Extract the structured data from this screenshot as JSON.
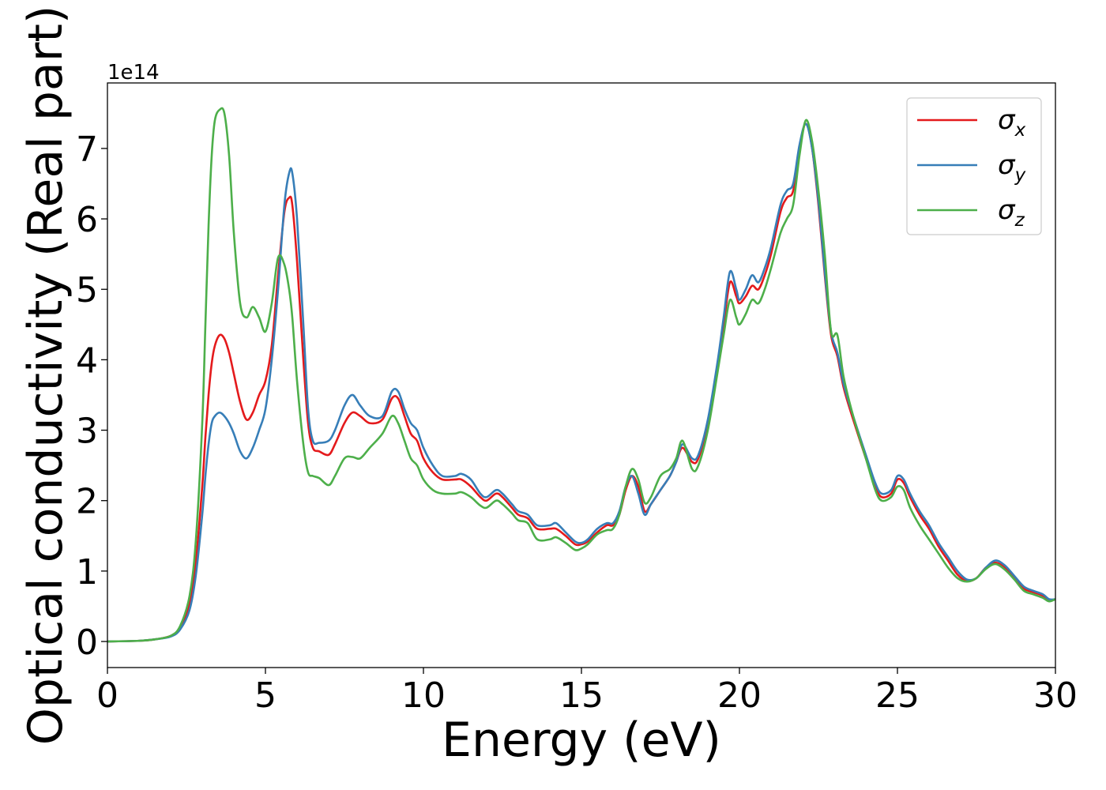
{
  "chart_data": {
    "type": "line",
    "xlabel": "Energy (eV)",
    "ylabel": "Optical conductivity (Real part)",
    "y_offset_text": "1e14",
    "xlim": [
      0,
      30
    ],
    "ylim": [
      -0.37,
      7.93
    ],
    "x_ticks": [
      0,
      5,
      10,
      15,
      20,
      25,
      30
    ],
    "y_ticks": [
      0,
      1,
      2,
      3,
      4,
      5,
      6,
      7
    ],
    "grid": false,
    "legend_position": "top-right",
    "series": [
      {
        "name": "σx",
        "symbol": "σ",
        "subscript": "x",
        "color": "#e41a1c",
        "x": [
          0,
          1,
          1.5,
          2,
          2.3,
          2.6,
          2.8,
          3.0,
          3.1,
          3.2,
          3.3,
          3.4,
          3.55,
          3.7,
          3.85,
          4.0,
          4.2,
          4.4,
          4.6,
          4.8,
          5.0,
          5.2,
          5.4,
          5.6,
          5.75,
          5.85,
          6.0,
          6.2,
          6.35,
          6.5,
          6.7,
          7.0,
          7.2,
          7.5,
          7.75,
          8.0,
          8.3,
          8.7,
          9.0,
          9.2,
          9.4,
          9.6,
          9.8,
          10.0,
          10.3,
          10.6,
          11.0,
          11.2,
          11.5,
          11.8,
          12.0,
          12.3,
          12.5,
          12.8,
          13.0,
          13.3,
          13.6,
          14.0,
          14.2,
          14.5,
          14.8,
          15.0,
          15.2,
          15.5,
          15.8,
          16.0,
          16.2,
          16.4,
          16.6,
          16.8,
          17.0,
          17.2,
          17.5,
          17.8,
          18.0,
          18.2,
          18.5,
          18.7,
          19.0,
          19.3,
          19.5,
          19.7,
          19.9,
          20.0,
          20.2,
          20.4,
          20.6,
          20.8,
          21.0,
          21.3,
          21.5,
          21.7,
          21.9,
          22.1,
          22.3,
          22.5,
          22.7,
          22.9,
          23.1,
          23.3,
          23.6,
          24.0,
          24.3,
          24.5,
          24.8,
          25.0,
          25.2,
          25.4,
          25.7,
          26.0,
          26.3,
          26.6,
          26.9,
          27.2,
          27.5,
          27.8,
          28.1,
          28.4,
          28.7,
          29.0,
          29.3,
          29.6,
          29.8,
          30.0
        ],
        "y": [
          0,
          0.01,
          0.03,
          0.08,
          0.2,
          0.55,
          1.15,
          2.2,
          2.9,
          3.5,
          3.95,
          4.2,
          4.35,
          4.3,
          4.1,
          3.8,
          3.4,
          3.15,
          3.25,
          3.5,
          3.7,
          4.2,
          5.2,
          6.1,
          6.3,
          6.2,
          5.4,
          4.0,
          3.1,
          2.75,
          2.7,
          2.65,
          2.8,
          3.1,
          3.25,
          3.2,
          3.1,
          3.15,
          3.45,
          3.45,
          3.2,
          2.95,
          2.85,
          2.6,
          2.4,
          2.3,
          2.3,
          2.3,
          2.2,
          2.05,
          2.0,
          2.1,
          2.05,
          1.9,
          1.8,
          1.75,
          1.6,
          1.6,
          1.6,
          1.5,
          1.38,
          1.38,
          1.42,
          1.55,
          1.65,
          1.65,
          1.8,
          2.15,
          2.35,
          2.2,
          1.85,
          1.95,
          2.15,
          2.35,
          2.55,
          2.75,
          2.55,
          2.6,
          3.1,
          3.9,
          4.5,
          5.1,
          4.9,
          4.8,
          4.9,
          5.05,
          5.0,
          5.2,
          5.5,
          6.1,
          6.3,
          6.4,
          7.0,
          7.35,
          7.0,
          6.2,
          5.2,
          4.35,
          4.05,
          3.6,
          3.15,
          2.6,
          2.2,
          2.05,
          2.1,
          2.3,
          2.25,
          2.05,
          1.8,
          1.6,
          1.35,
          1.15,
          0.95,
          0.86,
          0.9,
          1.05,
          1.12,
          1.05,
          0.9,
          0.75,
          0.7,
          0.65,
          0.58,
          0.6
        ]
      },
      {
        "name": "σy",
        "symbol": "σ",
        "subscript": "y",
        "color": "#377eb8",
        "x": [
          0,
          1,
          1.5,
          2,
          2.3,
          2.6,
          2.8,
          3.0,
          3.1,
          3.2,
          3.3,
          3.4,
          3.55,
          3.7,
          3.85,
          4.0,
          4.2,
          4.4,
          4.6,
          4.8,
          5.0,
          5.2,
          5.4,
          5.6,
          5.75,
          5.85,
          6.0,
          6.2,
          6.35,
          6.5,
          6.7,
          7.0,
          7.2,
          7.5,
          7.75,
          8.0,
          8.3,
          8.7,
          9.0,
          9.2,
          9.4,
          9.6,
          9.8,
          10.0,
          10.3,
          10.6,
          11.0,
          11.2,
          11.5,
          11.8,
          12.0,
          12.3,
          12.5,
          12.8,
          13.0,
          13.3,
          13.6,
          14.0,
          14.2,
          14.5,
          14.8,
          15.0,
          15.2,
          15.5,
          15.8,
          16.0,
          16.2,
          16.4,
          16.6,
          16.8,
          17.0,
          17.2,
          17.5,
          17.8,
          18.0,
          18.2,
          18.5,
          18.7,
          19.0,
          19.3,
          19.5,
          19.7,
          19.9,
          20.0,
          20.2,
          20.4,
          20.6,
          20.8,
          21.0,
          21.3,
          21.5,
          21.7,
          21.9,
          22.1,
          22.3,
          22.5,
          22.7,
          22.9,
          23.1,
          23.3,
          23.6,
          24.0,
          24.3,
          24.5,
          24.8,
          25.0,
          25.2,
          25.4,
          25.7,
          26.0,
          26.3,
          26.6,
          26.9,
          27.2,
          27.5,
          27.8,
          28.1,
          28.4,
          28.7,
          29.0,
          29.3,
          29.6,
          29.8,
          30.0
        ],
        "y": [
          0,
          0.01,
          0.03,
          0.07,
          0.17,
          0.45,
          0.95,
          1.8,
          2.35,
          2.8,
          3.1,
          3.2,
          3.25,
          3.2,
          3.1,
          2.95,
          2.7,
          2.6,
          2.75,
          3.0,
          3.3,
          4.0,
          5.0,
          6.2,
          6.65,
          6.65,
          6.0,
          4.5,
          3.3,
          2.85,
          2.82,
          2.85,
          3.0,
          3.35,
          3.5,
          3.35,
          3.2,
          3.2,
          3.55,
          3.55,
          3.3,
          3.1,
          3.0,
          2.75,
          2.5,
          2.35,
          2.35,
          2.38,
          2.3,
          2.1,
          2.05,
          2.15,
          2.1,
          1.95,
          1.85,
          1.8,
          1.65,
          1.65,
          1.68,
          1.55,
          1.42,
          1.4,
          1.45,
          1.6,
          1.68,
          1.68,
          1.85,
          2.2,
          2.35,
          2.1,
          1.8,
          1.95,
          2.15,
          2.35,
          2.55,
          2.8,
          2.6,
          2.65,
          3.15,
          3.95,
          4.6,
          5.25,
          5.0,
          4.85,
          5.0,
          5.2,
          5.1,
          5.3,
          5.6,
          6.2,
          6.4,
          6.5,
          7.05,
          7.35,
          7.0,
          6.25,
          5.25,
          4.4,
          4.1,
          3.65,
          3.2,
          2.65,
          2.25,
          2.1,
          2.15,
          2.35,
          2.3,
          2.1,
          1.85,
          1.65,
          1.4,
          1.2,
          1.0,
          0.88,
          0.9,
          1.05,
          1.15,
          1.08,
          0.93,
          0.78,
          0.72,
          0.67,
          0.6,
          0.6
        ]
      },
      {
        "name": "σz",
        "symbol": "σ",
        "subscript": "z",
        "color": "#4daf4a",
        "x": [
          0,
          1,
          1.5,
          2,
          2.3,
          2.6,
          2.8,
          3.0,
          3.1,
          3.2,
          3.3,
          3.4,
          3.55,
          3.7,
          3.85,
          4.0,
          4.2,
          4.4,
          4.6,
          4.8,
          5.0,
          5.2,
          5.4,
          5.6,
          5.75,
          5.85,
          6.0,
          6.2,
          6.35,
          6.5,
          6.7,
          7.0,
          7.2,
          7.5,
          7.75,
          8.0,
          8.3,
          8.7,
          9.0,
          9.2,
          9.4,
          9.6,
          9.8,
          10.0,
          10.3,
          10.6,
          11.0,
          11.2,
          11.5,
          11.8,
          12.0,
          12.3,
          12.5,
          12.8,
          13.0,
          13.3,
          13.6,
          14.0,
          14.2,
          14.5,
          14.8,
          15.0,
          15.2,
          15.5,
          15.8,
          16.0,
          16.2,
          16.4,
          16.6,
          16.8,
          17.0,
          17.2,
          17.5,
          17.8,
          18.0,
          18.2,
          18.5,
          18.7,
          19.0,
          19.3,
          19.5,
          19.7,
          19.9,
          20.0,
          20.2,
          20.4,
          20.6,
          20.8,
          21.0,
          21.3,
          21.5,
          21.7,
          21.9,
          22.1,
          22.3,
          22.5,
          22.7,
          22.9,
          23.1,
          23.3,
          23.6,
          24.0,
          24.3,
          24.5,
          24.8,
          25.0,
          25.2,
          25.4,
          25.7,
          26.0,
          26.3,
          26.6,
          26.9,
          27.2,
          27.5,
          27.8,
          28.1,
          28.4,
          28.7,
          29.0,
          29.3,
          29.6,
          29.8,
          30.0
        ],
        "y": [
          0,
          0.01,
          0.03,
          0.08,
          0.22,
          0.65,
          1.45,
          3.1,
          4.5,
          5.9,
          6.9,
          7.4,
          7.55,
          7.5,
          6.9,
          5.8,
          4.8,
          4.6,
          4.75,
          4.6,
          4.4,
          4.8,
          5.45,
          5.35,
          5.0,
          4.6,
          3.7,
          2.8,
          2.4,
          2.35,
          2.32,
          2.22,
          2.35,
          2.6,
          2.62,
          2.6,
          2.75,
          2.95,
          3.2,
          3.1,
          2.85,
          2.6,
          2.5,
          2.3,
          2.15,
          2.1,
          2.1,
          2.12,
          2.05,
          1.93,
          1.9,
          2.0,
          1.95,
          1.82,
          1.72,
          1.68,
          1.45,
          1.45,
          1.48,
          1.4,
          1.3,
          1.32,
          1.38,
          1.52,
          1.58,
          1.6,
          1.8,
          2.2,
          2.45,
          2.3,
          1.97,
          2.05,
          2.35,
          2.45,
          2.6,
          2.85,
          2.45,
          2.5,
          3.0,
          3.8,
          4.35,
          4.85,
          4.6,
          4.5,
          4.65,
          4.85,
          4.8,
          5.0,
          5.3,
          5.8,
          6.0,
          6.2,
          6.9,
          7.4,
          7.1,
          6.4,
          5.5,
          4.4,
          4.35,
          3.75,
          3.2,
          2.6,
          2.15,
          2.0,
          2.05,
          2.2,
          2.15,
          1.9,
          1.65,
          1.45,
          1.25,
          1.05,
          0.9,
          0.85,
          0.9,
          1.03,
          1.1,
          1.02,
          0.88,
          0.72,
          0.67,
          0.62,
          0.57,
          0.6
        ]
      }
    ]
  }
}
